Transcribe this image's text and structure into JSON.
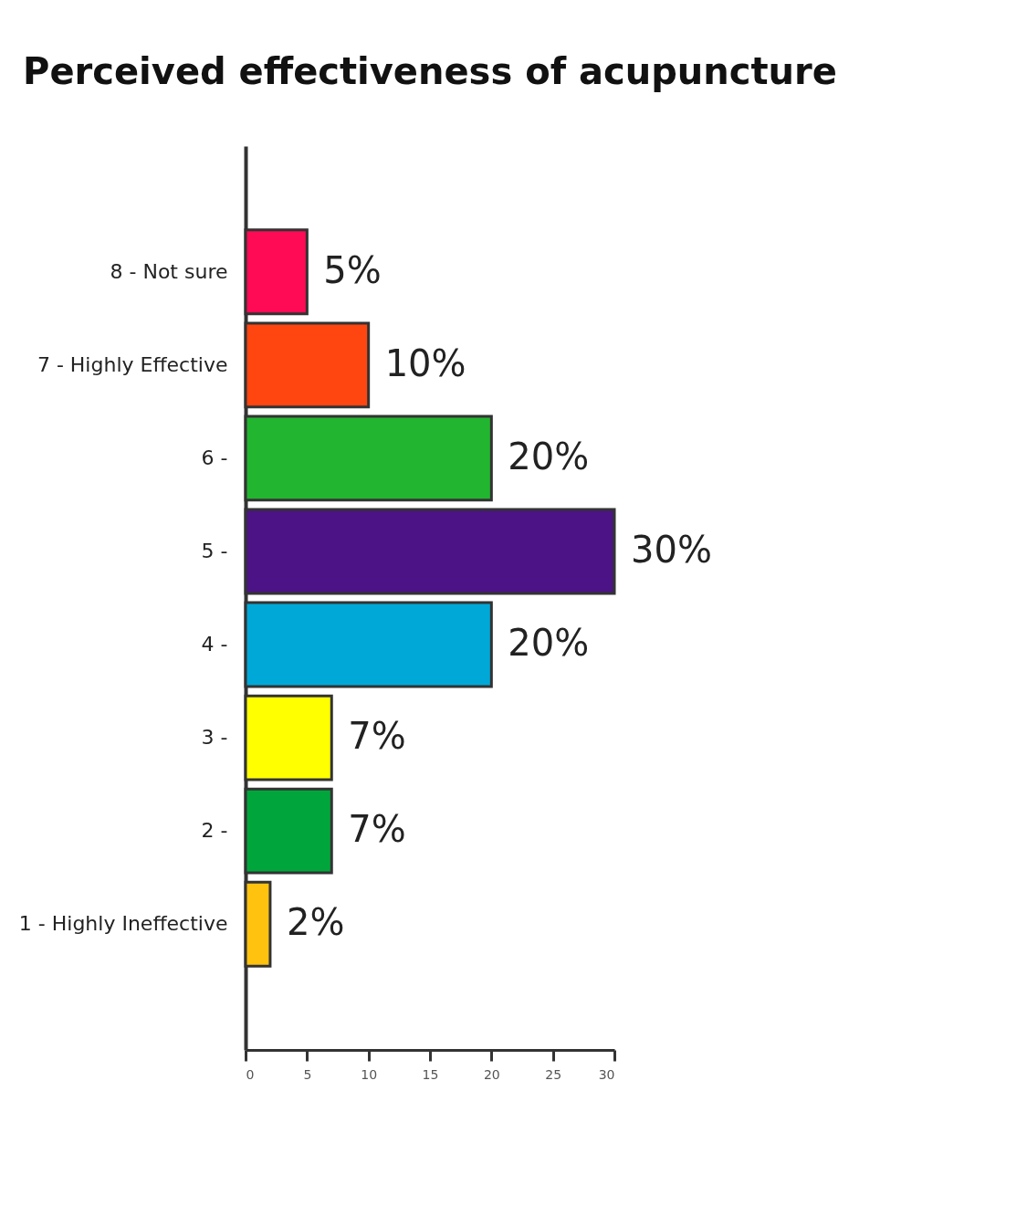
{
  "chart_data": {
    "type": "bar",
    "orientation": "horizontal",
    "title": "Perceived effectiveness of acupuncture",
    "categories": [
      "8 - Not sure",
      "7 - Highly Effective",
      "6 -",
      "5 -",
      "4 -",
      "3 -",
      "2 -",
      "1 - Highly Ineffective"
    ],
    "values": [
      5,
      10,
      20,
      30,
      20,
      7,
      7,
      2
    ],
    "colors": [
      "#ff0a54",
      "#ff4510",
      "#22b530",
      "#4b1385",
      "#00a8d8",
      "#ffff00",
      "#00a63c",
      "#ffc20e"
    ],
    "value_labels": [
      "5%",
      "10%",
      "20%",
      "30%",
      "20%",
      "7%",
      "7%",
      "2%"
    ],
    "xlim": [
      0,
      30
    ],
    "xticks": [
      0,
      5,
      10,
      15,
      20,
      25,
      30
    ],
    "grid": false
  }
}
